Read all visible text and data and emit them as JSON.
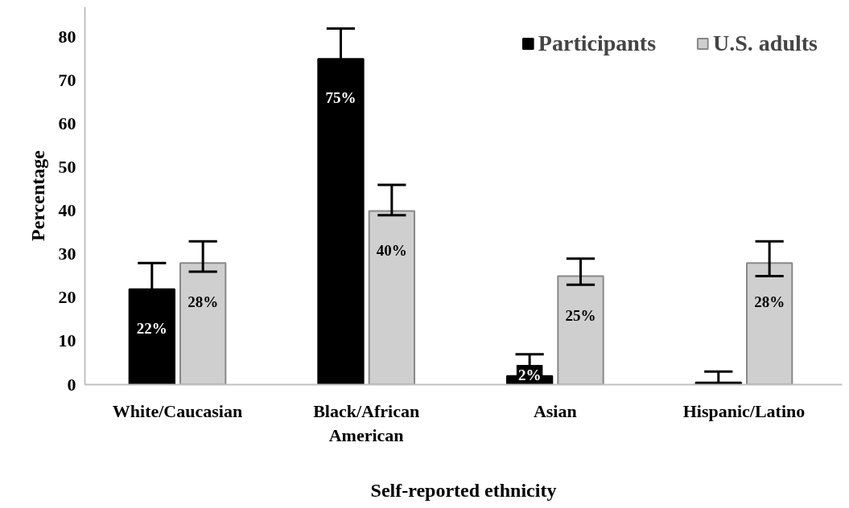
{
  "chart_data": {
    "type": "bar",
    "xlabel": "Self-reported ethnicity",
    "ylabel": "Percentage",
    "categories": [
      "White/Caucasian",
      "Black/African\nAmerican",
      "Asian",
      "Hispanic/Latino"
    ],
    "series": [
      {
        "name": "Participants",
        "color": "#000000",
        "values": [
          22,
          75,
          2,
          0.5
        ],
        "errors": [
          [
            22,
            28
          ],
          [
            75,
            82
          ],
          [
            2,
            7
          ],
          [
            0.5,
            3
          ]
        ],
        "value_labels": [
          "22%",
          "75%",
          "2%",
          null
        ]
      },
      {
        "name": "U.S. adults",
        "color": "#d0cfd0",
        "values": [
          28,
          40,
          25,
          28
        ],
        "errors": [
          [
            26,
            33
          ],
          [
            39,
            46
          ],
          [
            23,
            29
          ],
          [
            25,
            33
          ]
        ],
        "value_labels": [
          "28%",
          "40%",
          "25%",
          "28%"
        ]
      }
    ],
    "ylim": [
      0,
      87
    ],
    "yticks": [
      0,
      10,
      20,
      30,
      40,
      50,
      60,
      70,
      80
    ],
    "grid": false,
    "legend": "top right"
  }
}
